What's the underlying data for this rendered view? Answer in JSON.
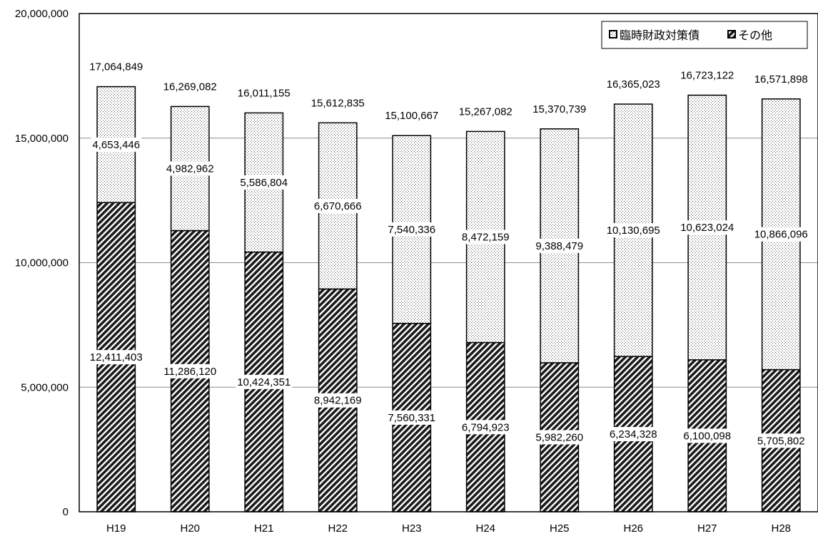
{
  "chart_data": {
    "type": "bar",
    "stacked": true,
    "categories": [
      "H19",
      "H20",
      "H21",
      "H22",
      "H23",
      "H24",
      "H25",
      "H26",
      "H27",
      "H28"
    ],
    "series": [
      {
        "name": "その他",
        "pattern": "diagonal-hatch",
        "values": [
          12411403,
          11286120,
          10424351,
          8942169,
          7560331,
          6794923,
          5982260,
          6234328,
          6100098,
          5705802
        ]
      },
      {
        "name": "臨時財政対策債",
        "pattern": "dotted",
        "values": [
          4653446,
          4982962,
          5586804,
          6670666,
          7540336,
          8472159,
          9388479,
          10130695,
          10623024,
          10866096
        ]
      }
    ],
    "totals": [
      17064849,
      16269082,
      16011155,
      15612835,
      15100667,
      15267082,
      15370739,
      16365023,
      16723122,
      16571898
    ],
    "ylim": [
      0,
      20000000
    ],
    "yticks": [
      0,
      5000000,
      10000000,
      15000000,
      20000000
    ],
    "grid": true,
    "legend_position": "top-right",
    "title": "",
    "xlabel": "",
    "ylabel": ""
  }
}
